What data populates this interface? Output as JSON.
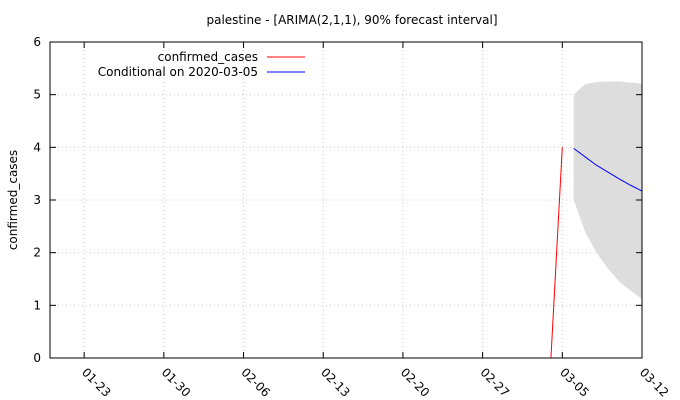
{
  "chart_data": {
    "type": "line",
    "title": "palestine -  [ARIMA(2,1,1), 90% forecast interval]",
    "ylabel": "confirmed_cases",
    "xlabel": "",
    "x_tick_labels": [
      "01-23",
      "01-30",
      "02-06",
      "02-13",
      "02-20",
      "02-27",
      "03-05",
      "03-12"
    ],
    "y_tick_labels": [
      "0",
      "1",
      "2",
      "3",
      "4",
      "5",
      "6"
    ],
    "xlim": [
      "2020-01-20",
      "2020-03-12"
    ],
    "ylim": [
      0,
      6
    ],
    "grid": true,
    "legend_position": "top-left",
    "series": [
      {
        "name": "confirmed_cases",
        "color": "#ff0000",
        "points": [
          {
            "x": "2020-03-04",
            "y": 0
          },
          {
            "x": "2020-03-05",
            "y": 4
          }
        ]
      },
      {
        "name": "Conditional on 2020-03-05",
        "color": "#0000ff",
        "points": [
          {
            "x": "2020-03-06",
            "y": 3.98
          },
          {
            "x": "2020-03-07",
            "y": 3.82
          },
          {
            "x": "2020-03-08",
            "y": 3.66
          },
          {
            "x": "2020-03-09",
            "y": 3.53
          },
          {
            "x": "2020-03-10",
            "y": 3.4
          },
          {
            "x": "2020-03-11",
            "y": 3.28
          },
          {
            "x": "2020-03-12",
            "y": 3.17
          }
        ]
      }
    ],
    "interval": {
      "color": "#dddddd",
      "points": [
        {
          "x": "2020-03-06",
          "low": 3.0,
          "high": 5.0
        },
        {
          "x": "2020-03-07",
          "low": 2.4,
          "high": 5.2
        },
        {
          "x": "2020-03-08",
          "low": 2.0,
          "high": 5.24
        },
        {
          "x": "2020-03-09",
          "low": 1.7,
          "high": 5.25
        },
        {
          "x": "2020-03-10",
          "low": 1.45,
          "high": 5.25
        },
        {
          "x": "2020-03-11",
          "low": 1.28,
          "high": 5.23
        },
        {
          "x": "2020-03-12",
          "low": 1.12,
          "high": 5.21
        }
      ]
    }
  }
}
